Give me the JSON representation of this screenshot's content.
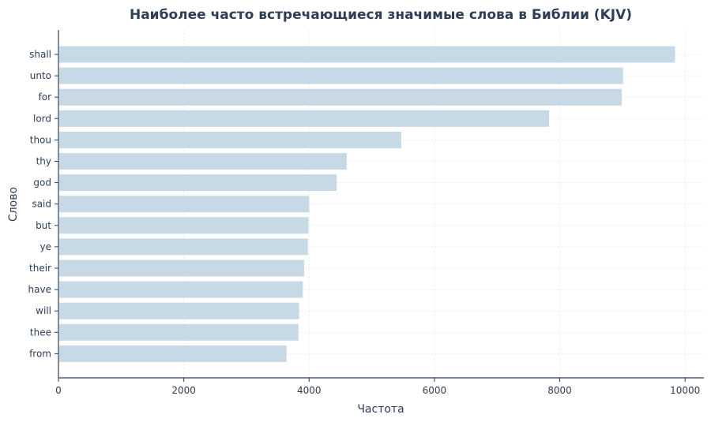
{
  "chart_data": {
    "type": "bar",
    "orientation": "horizontal",
    "title": "Наиболее часто встречающиеся значимые слова в Библии (KJV)",
    "xlabel": "Частота",
    "ylabel": "Слово",
    "categories": [
      "shall",
      "unto",
      "for",
      "lord",
      "thou",
      "thy",
      "god",
      "said",
      "but",
      "ye",
      "their",
      "have",
      "will",
      "thee",
      "from"
    ],
    "values": [
      9840,
      9010,
      8990,
      7830,
      5470,
      4600,
      4440,
      4000,
      3990,
      3980,
      3920,
      3900,
      3840,
      3830,
      3640
    ],
    "xlim": [
      0,
      10300
    ],
    "xticks": [
      0,
      2000,
      4000,
      6000,
      8000,
      10000
    ],
    "grid": true,
    "bar_color": "#c6d9e5",
    "text_color": "#2e3e57"
  }
}
